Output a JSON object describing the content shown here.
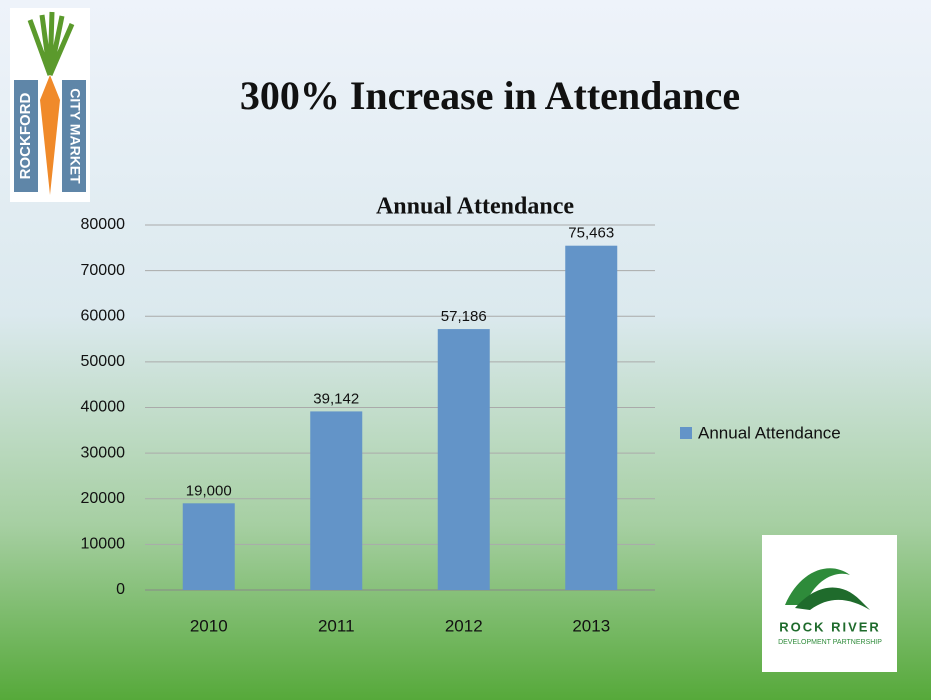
{
  "slide_title": "300% Increase in Attendance",
  "logos": {
    "left": [
      "ROCKFORD",
      "CITY MARKET"
    ],
    "right": [
      "ROCK RIVER",
      "DEVELOPMENT PARTNERSHIP"
    ]
  },
  "chart_data": {
    "type": "bar",
    "title": "Annual Attendance",
    "categories": [
      "2010",
      "2011",
      "2012",
      "2013"
    ],
    "series": [
      {
        "name": "Annual Attendance",
        "color": "#6394c8",
        "values": [
          19000,
          39142,
          57186,
          75463
        ],
        "value_labels": [
          "19,000",
          "39,142",
          "57,186",
          "75,463"
        ]
      }
    ],
    "ylim": [
      0,
      80000
    ],
    "yticks": [
      0,
      10000,
      20000,
      30000,
      40000,
      50000,
      60000,
      70000,
      80000
    ],
    "grid": true,
    "legend": "right"
  }
}
